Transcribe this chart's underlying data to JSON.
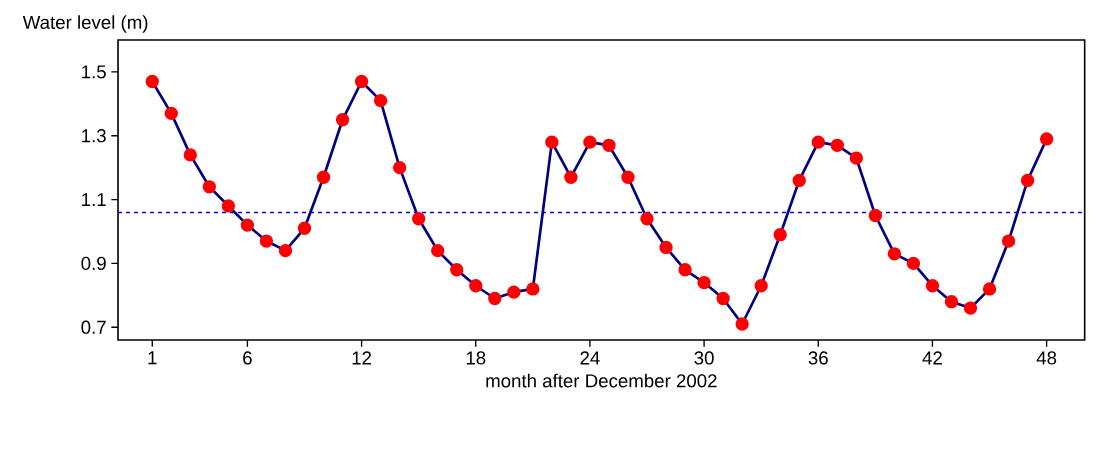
{
  "chart_data": {
    "type": "line",
    "xlabel": "month after December 2002",
    "ylabel": "Water level (m)",
    "x": [
      1,
      2,
      3,
      4,
      5,
      6,
      7,
      8,
      9,
      10,
      11,
      12,
      13,
      14,
      15,
      16,
      17,
      18,
      19,
      20,
      21,
      22,
      23,
      24,
      25,
      26,
      27,
      28,
      29,
      30,
      31,
      32,
      33,
      34,
      35,
      36,
      37,
      38,
      39,
      40,
      41,
      42,
      43,
      44,
      45,
      46,
      47,
      48
    ],
    "series": [
      {
        "color": "#000080",
        "values": [
          1.47,
          1.37,
          1.24,
          1.14,
          1.08,
          1.02,
          0.97,
          0.94,
          1.01,
          1.17,
          1.35,
          1.47,
          1.41,
          1.2,
          1.04,
          0.94,
          0.88,
          0.83,
          0.79,
          0.81,
          0.82,
          1.28,
          1.17,
          1.28,
          1.27,
          1.17,
          1.04,
          0.95,
          0.88,
          0.84,
          0.79,
          0.71,
          0.83,
          0.99,
          1.16,
          1.28,
          1.27,
          1.23,
          1.05,
          0.93,
          0.9,
          0.83,
          0.78,
          0.76,
          0.82,
          0.97,
          1.16,
          1.29
        ]
      }
    ],
    "xlim": [
      -0.8,
      50
    ],
    "ylim": [
      0.66,
      1.6
    ],
    "xticks": [
      1,
      6,
      12,
      18,
      24,
      30,
      36,
      42,
      48
    ],
    "yticks": [
      0.7,
      0.9,
      1.1,
      1.3,
      1.5
    ],
    "ref_lines": [
      {
        "axis": "y",
        "value": 1.06,
        "color": "#0000ff",
        "line_style": "dashed"
      }
    ],
    "marker": "circle",
    "line_style": "solid",
    "grid": false
  }
}
